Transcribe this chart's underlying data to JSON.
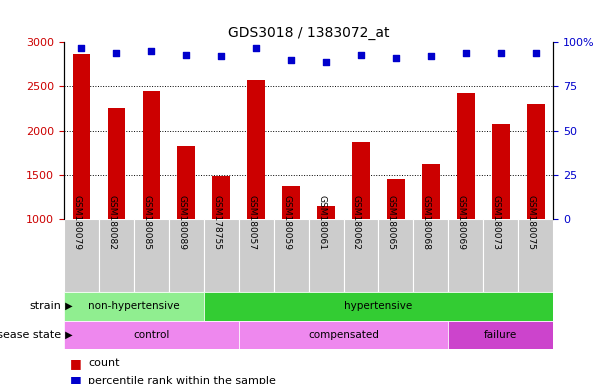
{
  "title": "GDS3018 / 1383072_at",
  "categories": [
    "GSM180079",
    "GSM180082",
    "GSM180085",
    "GSM180089",
    "GSM178755",
    "GSM180057",
    "GSM180059",
    "GSM180061",
    "GSM180062",
    "GSM180065",
    "GSM180068",
    "GSM180069",
    "GSM180073",
    "GSM180075"
  ],
  "counts": [
    2870,
    2250,
    2450,
    1820,
    1490,
    2570,
    1370,
    1150,
    1870,
    1450,
    1620,
    2430,
    2070,
    2300
  ],
  "percentile_ranks": [
    97,
    94,
    95,
    93,
    92,
    97,
    90,
    89,
    93,
    91,
    92,
    94,
    94,
    94
  ],
  "ylim_left": [
    1000,
    3000
  ],
  "ylim_right": [
    0,
    100
  ],
  "yticks_left": [
    1000,
    1500,
    2000,
    2500,
    3000
  ],
  "yticks_right": [
    0,
    25,
    50,
    75,
    100
  ],
  "bar_color": "#cc0000",
  "dot_color": "#0000cc",
  "strain_groups": [
    {
      "label": "non-hypertensive",
      "start": 0,
      "end": 4,
      "color": "#90ee90"
    },
    {
      "label": "hypertensive",
      "start": 4,
      "end": 14,
      "color": "#33cc33"
    }
  ],
  "disease_groups": [
    {
      "label": "control",
      "start": 0,
      "end": 5,
      "color": "#ee88ee"
    },
    {
      "label": "compensated",
      "start": 5,
      "end": 11,
      "color": "#ee88ee"
    },
    {
      "label": "failure",
      "start": 11,
      "end": 14,
      "color": "#cc44cc"
    }
  ],
  "strain_label": "strain",
  "disease_label": "disease state",
  "legend_count_label": "count",
  "legend_percentile_label": "percentile rank within the sample",
  "tick_label_bg": "#cccccc",
  "bar_width": 0.5
}
